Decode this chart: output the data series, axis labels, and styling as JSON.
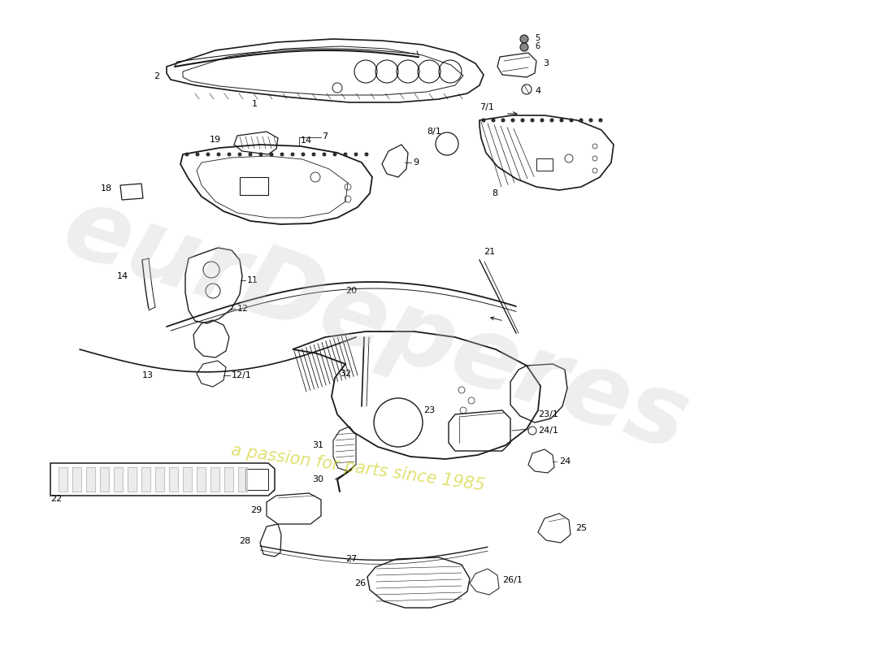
{
  "background_color": "#ffffff",
  "line_color": "#1a1a1a",
  "watermark1": "eurDeperes",
  "watermark2": "a passion for parts since 1985",
  "figw": 11.0,
  "figh": 8.0,
  "dpi": 100,
  "xlim": [
    0,
    1100
  ],
  "ylim": [
    0,
    800
  ]
}
